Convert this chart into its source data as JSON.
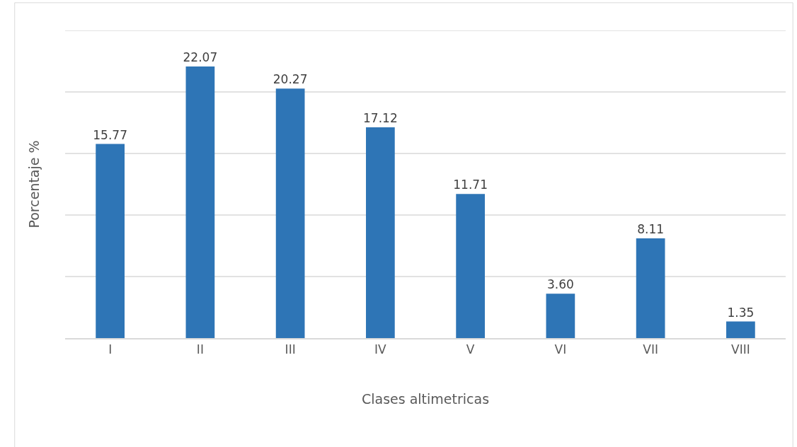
{
  "chart_data": {
    "type": "bar",
    "xlabel": "Clases altimetricas",
    "ylabel": "Porcentaje %",
    "categories": [
      "I",
      "II",
      "III",
      "IV",
      "V",
      "VI",
      "VII",
      "VIII"
    ],
    "values": [
      15.77,
      22.07,
      20.27,
      17.12,
      11.71,
      3.6,
      8.11,
      1.35
    ],
    "value_labels": [
      "15.77",
      "22.07",
      "20.27",
      "17.12",
      "11.71",
      "3.60",
      "8.11",
      "1.35"
    ],
    "color": "#2e75b6",
    "ylim": [
      0,
      25
    ],
    "yticks": [
      {
        "value": 0,
        "label": null
      },
      {
        "value": 5,
        "label": null
      },
      {
        "value": 10,
        "label": null
      },
      {
        "value": 15,
        "label": null
      },
      {
        "value": 20,
        "label": null
      },
      {
        "value": 25,
        "label": null
      }
    ],
    "grid": "y",
    "tick_labels": "x"
  }
}
